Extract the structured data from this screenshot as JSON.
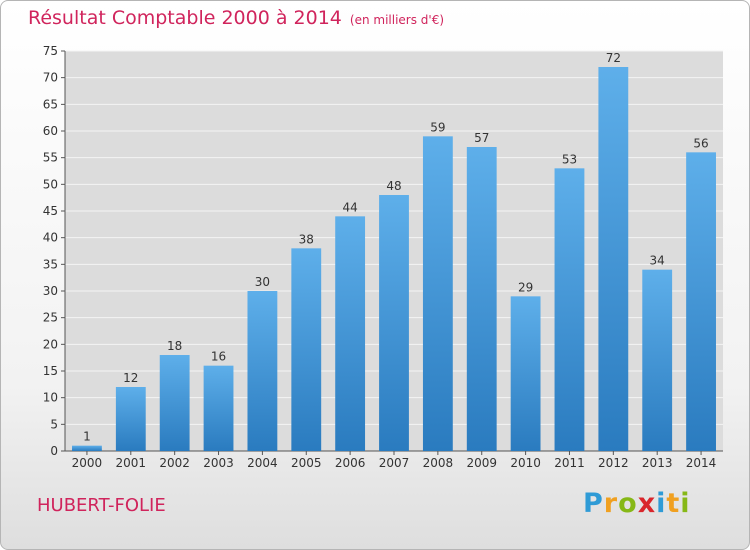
{
  "chart_data": {
    "type": "bar",
    "title": "Résultat Comptable 2000 à 2014",
    "subtitle": "(en milliers d'€)",
    "categories": [
      "2000",
      "2001",
      "2002",
      "2003",
      "2004",
      "2005",
      "2006",
      "2007",
      "2008",
      "2009",
      "2010",
      "2011",
      "2012",
      "2013",
      "2014"
    ],
    "values": [
      1,
      12,
      18,
      16,
      30,
      38,
      44,
      48,
      59,
      57,
      29,
      53,
      72,
      34,
      56
    ],
    "ylim": [
      0,
      75
    ],
    "yticks": [
      0,
      5,
      10,
      15,
      20,
      25,
      30,
      35,
      40,
      45,
      50,
      55,
      60,
      65,
      70,
      75
    ],
    "grid": true,
    "bar_color": "#4b9ede"
  },
  "commune": "HUBERT-FOLIE",
  "logo": {
    "text": "Proxiti",
    "letters": [
      {
        "char": "P",
        "color": "#2f9bd6"
      },
      {
        "char": "r",
        "color": "#f0a020"
      },
      {
        "char": "o",
        "color": "#86b817"
      },
      {
        "char": "x",
        "color": "#d9262c"
      },
      {
        "char": "i",
        "color": "#2f9bd6"
      },
      {
        "char": "t",
        "color": "#f0a020"
      },
      {
        "char": "i",
        "color": "#86b817"
      }
    ]
  }
}
